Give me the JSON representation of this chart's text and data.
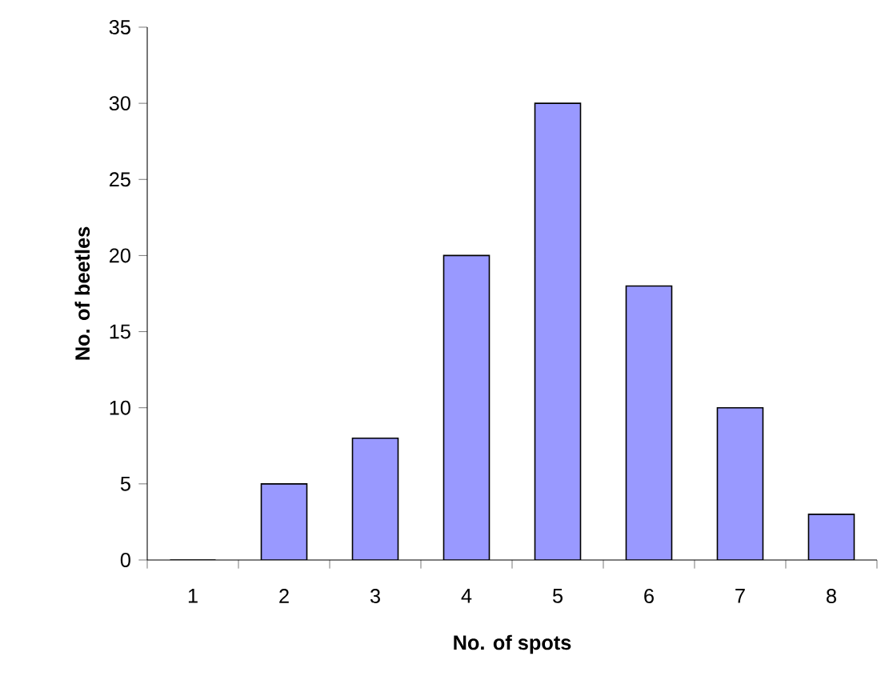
{
  "chart_data": {
    "type": "bar",
    "xlabel": "No. of spots",
    "ylabel": "No. of beetles",
    "categories": [
      "1",
      "2",
      "3",
      "4",
      "5",
      "6",
      "7",
      "8"
    ],
    "values": [
      0,
      5,
      8,
      20,
      30,
      18,
      10,
      3
    ],
    "color": "#9999ff",
    "ylim": [
      0,
      35
    ],
    "yticks": [
      0,
      5,
      10,
      15,
      20,
      25,
      30,
      35
    ],
    "grid": false
  }
}
